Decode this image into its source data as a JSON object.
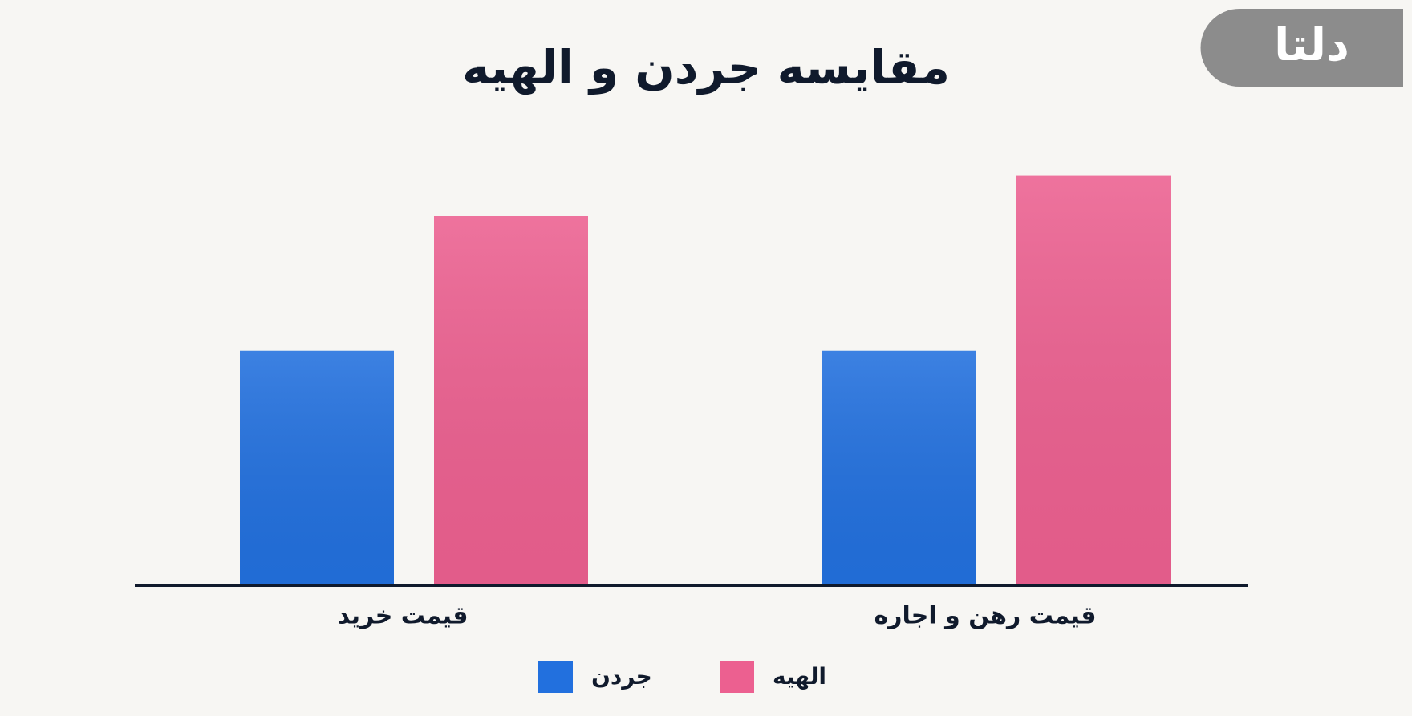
{
  "logo": "دلتا",
  "chart_data": {
    "type": "bar",
    "title": "مقایسه جردن و الهیه",
    "categories": [
      "قیمت خرید",
      "قیمت رهن و اجاره"
    ],
    "series": [
      {
        "name": "جردن",
        "color": "#2270de",
        "values": [
          52,
          52
        ]
      },
      {
        "name": "الهیه",
        "color": "#ec6090",
        "values": [
          82,
          91
        ]
      }
    ],
    "ylim": [
      0,
      100
    ]
  }
}
